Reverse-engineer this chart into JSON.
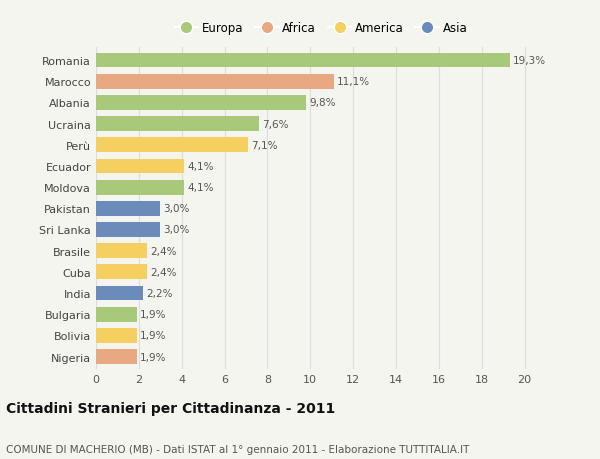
{
  "countries": [
    "Romania",
    "Marocco",
    "Albania",
    "Ucraina",
    "Perù",
    "Ecuador",
    "Moldova",
    "Pakistan",
    "Sri Lanka",
    "Brasile",
    "Cuba",
    "India",
    "Bulgaria",
    "Bolivia",
    "Nigeria"
  ],
  "values": [
    19.3,
    11.1,
    9.8,
    7.6,
    7.1,
    4.1,
    4.1,
    3.0,
    3.0,
    2.4,
    2.4,
    2.2,
    1.9,
    1.9,
    1.9
  ],
  "labels": [
    "19,3%",
    "11,1%",
    "9,8%",
    "7,6%",
    "7,1%",
    "4,1%",
    "4,1%",
    "3,0%",
    "3,0%",
    "2,4%",
    "2,4%",
    "2,2%",
    "1,9%",
    "1,9%",
    "1,9%"
  ],
  "continents": [
    "Europa",
    "Africa",
    "Europa",
    "Europa",
    "America",
    "America",
    "Europa",
    "Asia",
    "Asia",
    "America",
    "America",
    "Asia",
    "Europa",
    "America",
    "Africa"
  ],
  "colors": {
    "Europa": "#a8c87a",
    "Africa": "#e8a882",
    "America": "#f5d060",
    "Asia": "#6b8cba"
  },
  "xlim": [
    0,
    21
  ],
  "xticks": [
    0,
    2,
    4,
    6,
    8,
    10,
    12,
    14,
    16,
    18,
    20
  ],
  "title": "Cittadini Stranieri per Cittadinanza - 2011",
  "subtitle": "COMUNE DI MACHERIO (MB) - Dati ISTAT al 1° gennaio 2011 - Elaborazione TUTTITALIA.IT",
  "background_color": "#f5f5f0",
  "bar_height": 0.7,
  "grid_color": "#dddddd",
  "label_fontsize": 7.5,
  "ytick_fontsize": 8,
  "xtick_fontsize": 8,
  "title_fontsize": 10,
  "subtitle_fontsize": 7.5,
  "legend_order": [
    "Europa",
    "Africa",
    "America",
    "Asia"
  ]
}
